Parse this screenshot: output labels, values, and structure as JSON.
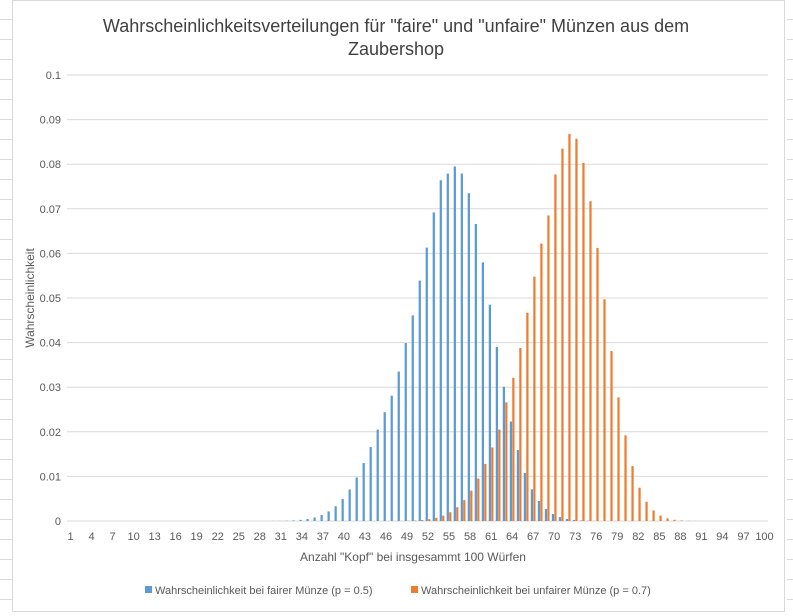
{
  "chart_data": {
    "type": "bar",
    "title": "Wahrscheinlichkeitsverteilungen für \"faire\" und \"unfaire\" Münzen aus dem Zaubershop",
    "title_lines": [
      "Wahrscheinlichkeitsverteilungen für \"faire\" und \"unfaire\" Münzen aus dem",
      "Zaubershop"
    ],
    "xlabel": "Anzahl \"Kopf\" bei insgesammt 100 Würfen",
    "ylabel": "Wahrscheinlichkeit",
    "ylim": [
      0,
      0.1
    ],
    "yticks": [
      "0",
      "0.01",
      "0.02",
      "0.03",
      "0.04",
      "0.05",
      "0.06",
      "0.07",
      "0.08",
      "0.09",
      "0.1"
    ],
    "xlim": [
      1,
      100
    ],
    "xticks": [
      1,
      4,
      7,
      10,
      13,
      16,
      19,
      22,
      25,
      28,
      31,
      34,
      37,
      40,
      43,
      46,
      49,
      52,
      55,
      58,
      61,
      64,
      67,
      70,
      73,
      76,
      79,
      82,
      85,
      88,
      91,
      94,
      97,
      100
    ],
    "grid": true,
    "legend_position": "bottom",
    "series": [
      {
        "name": "Wahrscheinlichkeit bei fairer Münze (p = 0.5)",
        "color": "#5b9bd5",
        "x_start": 1,
        "values": [
          7.89e-29,
          3.9e-27,
          1.27e-25,
          3.06e-24,
          5.82e-23,
          9.12e-22,
          1.21e-20,
          1.4e-19,
          1.43e-18,
          1.3e-17,
          1.06e-16,
          7.87e-16,
          5.33e-15,
          3.3e-14,
          1.88e-13,
          9.87e-13,
          4.81e-12,
          2.18e-11,
          9.2e-11,
          3.64e-10,
          1.35e-09,
          4.73e-09,
          1.56e-08,
          4.87e-08,
          1.43e-07,
          4e-07,
          1.06e-06,
          2.67e-06,
          6.4e-06,
          1.46e-05,
          3.18e-05,
          6.6e-05,
          0.000131,
          0.000249,
          0.000454,
          0.000793,
          0.00133,
          0.00214,
          0.00331,
          0.00493,
          0.00707,
          0.00976,
          0.013,
          0.0166,
          0.0205,
          0.0244,
          0.0281,
          0.0335,
          0.0399,
          0.0461,
          0.0539,
          0.0613,
          0.0692,
          0.0764,
          0.0779,
          0.0795,
          0.0779,
          0.0735,
          0.0666,
          0.058,
          0.0485,
          0.039,
          0.0301,
          0.0223,
          0.0159,
          0.0108,
          0.00711,
          0.00448,
          0.00271,
          0.00157,
          0.000873,
          0.000464,
          0.000236,
          0.000115,
          5.35e-05,
          2.38e-05,
          1e-05,
          4.1e-06,
          1.6e-06,
          5.8e-07,
          2e-07,
          6.6e-08,
          2e-08,
          5.8e-09,
          1.6e-09,
          4e-10,
          9.6e-11,
          2.2e-11,
          4.6e-12,
          9e-13,
          1.6e-13,
          2.7e-14,
          4.1e-15,
          5.7e-16,
          7.1e-17,
          7.8e-18,
          7.4e-19,
          5.9e-20,
          3.7e-21,
          1.6e-22
        ]
      },
      {
        "name": "Wahrscheinlichkeit bei unfairer Münze (p = 0.7)",
        "color": "#ed7d31",
        "x_start": 1,
        "values": [
          0,
          0,
          0,
          0,
          0,
          0,
          0,
          0,
          0,
          0,
          0,
          0,
          0,
          0,
          0,
          0,
          0,
          0,
          0,
          0,
          0,
          0,
          0,
          0,
          0,
          0,
          0,
          0,
          0,
          0,
          0,
          0,
          0,
          0,
          0,
          0,
          0,
          0,
          0,
          0,
          0,
          0,
          0,
          1e-06,
          3e-06,
          6e-06,
          1.4e-05,
          3e-05,
          6.2e-05,
          0.000121,
          0.000227,
          0.000411,
          0.00072,
          0.00121,
          0.00197,
          0.00309,
          0.00468,
          0.0068,
          0.00952,
          0.0128,
          0.0165,
          0.0205,
          0.0266,
          0.0321,
          0.0388,
          0.0467,
          0.0548,
          0.0622,
          0.0685,
          0.0777,
          0.0835,
          0.0868,
          0.0857,
          0.0803,
          0.0717,
          0.0612,
          0.0497,
          0.0381,
          0.0277,
          0.0192,
          0.0123,
          0.00747,
          0.00432,
          0.00236,
          0.00122,
          0.000594,
          0.000273,
          0.000119,
          4.9e-05,
          1.9e-05,
          6.8e-06,
          2.3e-06,
          7e-07,
          2e-07,
          5e-08,
          1.2e-08,
          2.5e-09,
          4.6e-10,
          7.4e-11,
          1e-11
        ]
      }
    ]
  },
  "colors": {
    "gridline": "#d9d9d9",
    "axis_text": "#595959",
    "title_text": "#404040"
  }
}
